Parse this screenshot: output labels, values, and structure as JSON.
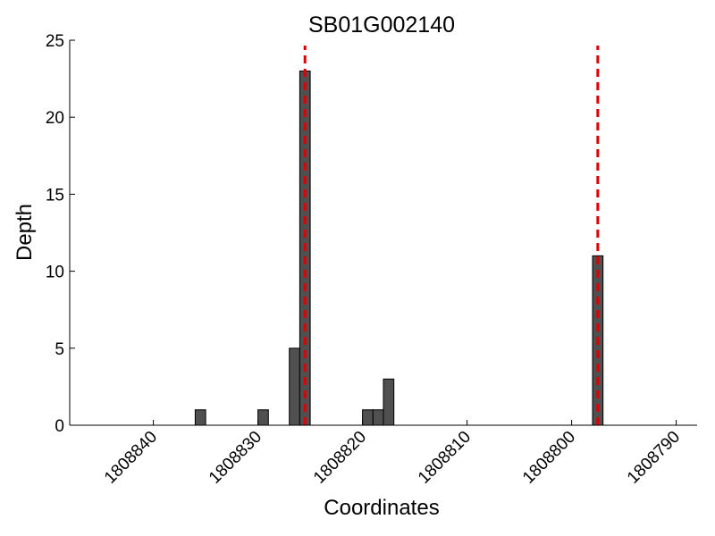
{
  "chart_data": {
    "type": "bar",
    "title": "SB01G002140",
    "xlabel": "Coordinates",
    "ylabel": "Depth",
    "x_axis_inverted": true,
    "xlim": [
      1808848,
      1808788
    ],
    "ylim": [
      0,
      25
    ],
    "x_ticks": [
      1808840,
      1808830,
      1808820,
      1808810,
      1808800,
      1808790
    ],
    "y_ticks": [
      0,
      5,
      10,
      15,
      20,
      25
    ],
    "bar_color": "#505050",
    "bar_edge_color": "#000000",
    "bar_width": 1,
    "bars": [
      {
        "x": 1808835.5,
        "value": 1
      },
      {
        "x": 1808829.5,
        "value": 1
      },
      {
        "x": 1808826.5,
        "value": 5
      },
      {
        "x": 1808825.5,
        "value": 23
      },
      {
        "x": 1808819.5,
        "value": 1
      },
      {
        "x": 1808818.5,
        "value": 1
      },
      {
        "x": 1808817.5,
        "value": 3
      },
      {
        "x": 1808797.5,
        "value": 11
      }
    ],
    "reference_lines": [
      {
        "x": 1808825.5,
        "color": "#dd0000",
        "style": "dashed"
      },
      {
        "x": 1808797.5,
        "color": "#dd0000",
        "style": "dashed"
      }
    ],
    "grid": false,
    "legend": "none"
  }
}
